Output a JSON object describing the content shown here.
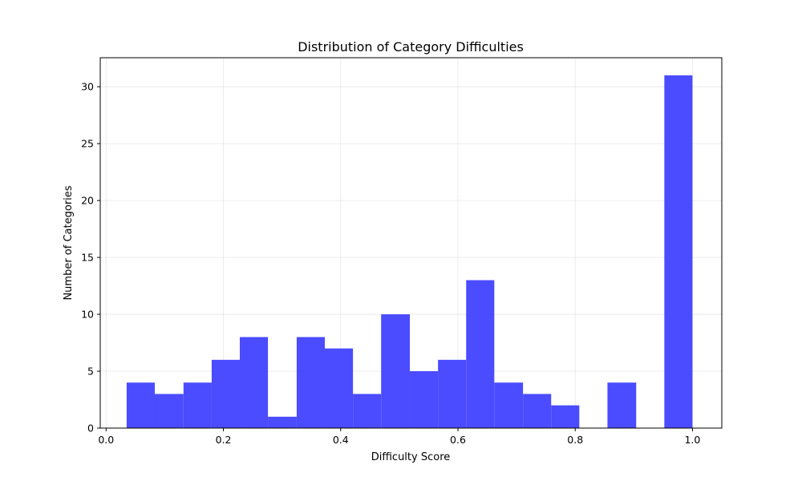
{
  "chart_data": {
    "type": "bar",
    "title": "Distribution of Category Difficulties",
    "xlabel": "Difficulty Score",
    "ylabel": "Number of Categories",
    "xlim": [
      -0.01,
      1.05
    ],
    "ylim": [
      0,
      32.55
    ],
    "grid": true,
    "bar_color": "#4b4bff",
    "bins": [
      {
        "x0": 0.035,
        "x1": 0.083,
        "value": 4
      },
      {
        "x0": 0.083,
        "x1": 0.132,
        "value": 3
      },
      {
        "x0": 0.132,
        "x1": 0.18,
        "value": 4
      },
      {
        "x0": 0.18,
        "x1": 0.228,
        "value": 6
      },
      {
        "x0": 0.228,
        "x1": 0.276,
        "value": 8
      },
      {
        "x0": 0.276,
        "x1": 0.325,
        "value": 1
      },
      {
        "x0": 0.325,
        "x1": 0.373,
        "value": 8
      },
      {
        "x0": 0.373,
        "x1": 0.421,
        "value": 7
      },
      {
        "x0": 0.421,
        "x1": 0.469,
        "value": 3
      },
      {
        "x0": 0.469,
        "x1": 0.518,
        "value": 10
      },
      {
        "x0": 0.518,
        "x1": 0.566,
        "value": 5
      },
      {
        "x0": 0.566,
        "x1": 0.614,
        "value": 6
      },
      {
        "x0": 0.614,
        "x1": 0.662,
        "value": 13
      },
      {
        "x0": 0.662,
        "x1": 0.711,
        "value": 4
      },
      {
        "x0": 0.711,
        "x1": 0.759,
        "value": 3
      },
      {
        "x0": 0.759,
        "x1": 0.807,
        "value": 2
      },
      {
        "x0": 0.807,
        "x1": 0.855,
        "value": 0
      },
      {
        "x0": 0.855,
        "x1": 0.904,
        "value": 4
      },
      {
        "x0": 0.904,
        "x1": 0.952,
        "value": 0
      },
      {
        "x0": 0.952,
        "x1": 1.0,
        "value": 31
      }
    ],
    "x_ticks": [
      {
        "value": 0.0,
        "label": "0.0"
      },
      {
        "value": 0.2,
        "label": "0.2"
      },
      {
        "value": 0.4,
        "label": "0.4"
      },
      {
        "value": 0.6,
        "label": "0.6"
      },
      {
        "value": 0.8,
        "label": "0.8"
      },
      {
        "value": 1.0,
        "label": "1.0"
      }
    ],
    "y_ticks": [
      {
        "value": 0,
        "label": "0"
      },
      {
        "value": 5,
        "label": "5"
      },
      {
        "value": 10,
        "label": "10"
      },
      {
        "value": 15,
        "label": "15"
      },
      {
        "value": 20,
        "label": "20"
      },
      {
        "value": 25,
        "label": "25"
      },
      {
        "value": 30,
        "label": "30"
      }
    ]
  }
}
